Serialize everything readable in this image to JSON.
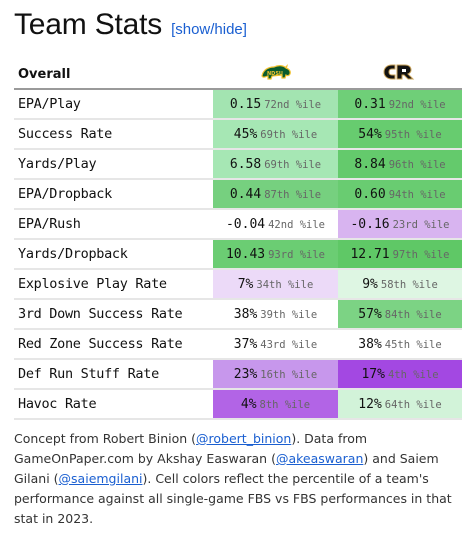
{
  "header": {
    "title": "Team Stats",
    "toggle_label": "[show/hide]"
  },
  "table": {
    "section_label": "Overall",
    "team1_logo": "ndsu-bison-logo",
    "team2_logo": "colorado-buffaloes-logo",
    "rows": [
      {
        "stat": "EPA/Play",
        "t1_value": "0.15",
        "t1_pct": "72nd %ile",
        "t1_color": "#a3e4b1",
        "t2_value": "0.31",
        "t2_pct": "92nd %ile",
        "t2_color": "#6fcf78"
      },
      {
        "stat": "Success Rate",
        "t1_value": "45%",
        "t1_pct": "69th %ile",
        "t1_color": "#a6e7b4",
        "t2_value": "54%",
        "t2_pct": "95th %ile",
        "t2_color": "#67cc6f"
      },
      {
        "stat": "Yards/Play",
        "t1_value": "6.58",
        "t1_pct": "69th %ile",
        "t1_color": "#a6e7b4",
        "t2_value": "8.84",
        "t2_pct": "96th %ile",
        "t2_color": "#64ca6c"
      },
      {
        "stat": "EPA/Dropback",
        "t1_value": "0.44",
        "t1_pct": "87th %ile",
        "t1_color": "#76d07f",
        "t2_value": "0.60",
        "t2_pct": "94th %ile",
        "t2_color": "#69cc71"
      },
      {
        "stat": "EPA/Rush",
        "t1_value": "-0.04",
        "t1_pct": "42nd %ile",
        "t1_color": "#ffffff",
        "t2_value": "-0.16",
        "t2_pct": "23rd %ile",
        "t2_color": "#d8b4f0"
      },
      {
        "stat": "Yards/Dropback",
        "t1_value": "10.43",
        "t1_pct": "93rd %ile",
        "t1_color": "#6bcd73",
        "t2_value": "12.71",
        "t2_pct": "97th %ile",
        "t2_color": "#5fc866"
      },
      {
        "stat": "Explosive Play Rate",
        "t1_value": "7%",
        "t1_pct": "34th %ile",
        "t1_color": "#ecdaf8",
        "t2_value": "9%",
        "t2_pct": "58th %ile",
        "t2_color": "#def6e3"
      },
      {
        "stat": "3rd Down Success Rate",
        "t1_value": "38%",
        "t1_pct": "39th %ile",
        "t1_color": "#ffffff",
        "t2_value": "57%",
        "t2_pct": "84th %ile",
        "t2_color": "#7cd384"
      },
      {
        "stat": "Red Zone Success Rate",
        "t1_value": "37%",
        "t1_pct": "43rd %ile",
        "t1_color": "#ffffff",
        "t2_value": "38%",
        "t2_pct": "45th %ile",
        "t2_color": "#ffffff"
      },
      {
        "stat": "Def Run Stuff Rate",
        "t1_value": "23%",
        "t1_pct": "16th %ile",
        "t1_color": "#c797ec",
        "t2_value": "17%",
        "t2_pct": "4th %ile",
        "t2_color": "#a348e2"
      },
      {
        "stat": "Havoc Rate",
        "t1_value": "4%",
        "t1_pct": "8th %ile",
        "t1_color": "#b264e6",
        "t2_value": "12%",
        "t2_pct": "64th %ile",
        "t2_color": "#d2f3d9"
      }
    ]
  },
  "footnote": {
    "t1": "Concept from Robert Binion (",
    "link1": "@robert_binion",
    "t2": "). Data from GameOnPaper.com by Akshay Easwaran (",
    "link2": "@akeaswaran",
    "t3": ") and Saiem Gilani (",
    "link3": "@saiemgilani",
    "t4": "). Cell colors reflect the percentile of a team's performance against all single-game FBS vs FBS performances in that stat in 2023."
  }
}
